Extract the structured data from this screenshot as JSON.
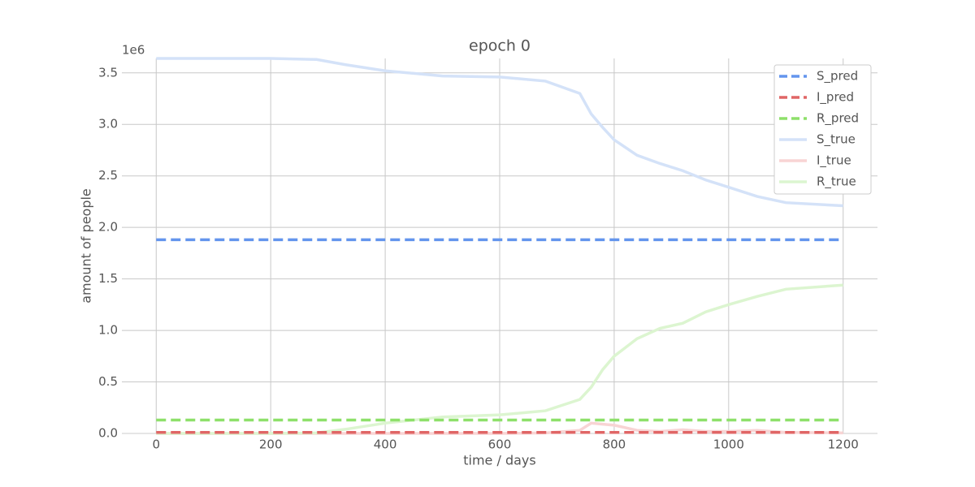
{
  "chart_data": {
    "type": "line",
    "title": "epoch 0",
    "x_label": "time / days",
    "y_label": "amount of people",
    "y_offset_label": "1e6",
    "x": [
      0,
      100,
      200,
      280,
      330,
      400,
      500,
      600,
      680,
      740,
      760,
      780,
      800,
      840,
      880,
      920,
      960,
      1000,
      1050,
      1100,
      1200
    ],
    "series": [
      {
        "name": "S_pred",
        "color": "#6495ed",
        "style": "dashed",
        "values": [
          1.88,
          1.88,
          1.88,
          1.88,
          1.88,
          1.88,
          1.88,
          1.88,
          1.88,
          1.88,
          1.88,
          1.88,
          1.88,
          1.88,
          1.88,
          1.88,
          1.88,
          1.88,
          1.88,
          1.88,
          1.88
        ]
      },
      {
        "name": "I_pred",
        "color": "#e06666",
        "style": "dashed",
        "values": [
          0.01,
          0.01,
          0.01,
          0.01,
          0.01,
          0.01,
          0.01,
          0.01,
          0.01,
          0.01,
          0.01,
          0.01,
          0.01,
          0.01,
          0.01,
          0.01,
          0.01,
          0.01,
          0.01,
          0.01,
          0.01
        ]
      },
      {
        "name": "R_pred",
        "color": "#8ee06a",
        "style": "dashed",
        "values": [
          0.13,
          0.13,
          0.13,
          0.13,
          0.13,
          0.13,
          0.13,
          0.13,
          0.13,
          0.13,
          0.13,
          0.13,
          0.13,
          0.13,
          0.13,
          0.13,
          0.13,
          0.13,
          0.13,
          0.13,
          0.13
        ]
      },
      {
        "name": "S_true",
        "color": "#d4e2f8",
        "style": "solid",
        "values": [
          3.64,
          3.64,
          3.64,
          3.63,
          3.58,
          3.52,
          3.47,
          3.46,
          3.42,
          3.3,
          3.1,
          2.97,
          2.85,
          2.7,
          2.62,
          2.55,
          2.46,
          2.39,
          2.3,
          2.24,
          2.21
        ]
      },
      {
        "name": "I_true",
        "color": "#f8d4d4",
        "style": "solid",
        "values": [
          0,
          0,
          0,
          0,
          0,
          0,
          0,
          0,
          0.005,
          0.03,
          0.1,
          0.09,
          0.08,
          0.03,
          0.02,
          0.035,
          0.02,
          0.02,
          0.03,
          0.01,
          0.005
        ]
      },
      {
        "name": "R_true",
        "color": "#dcf5d0",
        "style": "solid",
        "values": [
          0,
          0,
          0,
          0.005,
          0.04,
          0.1,
          0.16,
          0.18,
          0.22,
          0.33,
          0.45,
          0.62,
          0.75,
          0.92,
          1.02,
          1.07,
          1.18,
          1.25,
          1.33,
          1.4,
          1.44
        ]
      }
    ],
    "xlim": [
      -60,
      1260
    ],
    "xticks": [
      0,
      200,
      400,
      600,
      800,
      1000,
      1200
    ],
    "ylim": [
      0,
      3.64
    ],
    "yticks": [
      {
        "value": 0,
        "label": "0.0"
      },
      0.5,
      {
        "value": 1,
        "label": "1.0"
      },
      1.5,
      {
        "value": 2,
        "label": "2.0"
      },
      2.5,
      {
        "value": 3,
        "label": "3.0"
      },
      3.5
    ],
    "grid": true,
    "legend": "upper right"
  }
}
